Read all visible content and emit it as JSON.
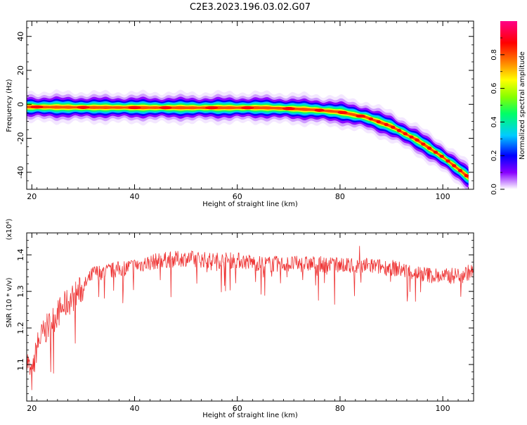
{
  "title": "C2E3.2023.196.03.02.G07",
  "chart_data": [
    {
      "type": "heatmap",
      "xlabel": "Height of straight line (km)",
      "ylabel": "Frequency (Hz)",
      "xlim": [
        19,
        106
      ],
      "ylim": [
        -50,
        49
      ],
      "xticks": [
        20,
        40,
        60,
        80,
        100
      ],
      "yticks": [
        -40,
        -20,
        0,
        20,
        40
      ],
      "colorbar": {
        "label": "Normalized spectral amplitude",
        "range": [
          0,
          1
        ],
        "ticks": [
          "0.0",
          "0.2",
          "0.4",
          "0.6",
          "0.8"
        ],
        "colors": [
          "#ffffff",
          "#8800ff",
          "#0000ff",
          "#00ccff",
          "#00ff66",
          "#88ff00",
          "#ffff00",
          "#ff8800",
          "#ff0000",
          "#ff0088"
        ]
      },
      "ridge": [
        {
          "x": 19,
          "y": -1.5
        },
        {
          "x": 30,
          "y": -1.8
        },
        {
          "x": 50,
          "y": -2.0
        },
        {
          "x": 65,
          "y": -2.0
        },
        {
          "x": 70,
          "y": -2.5
        },
        {
          "x": 75,
          "y": -3.2
        },
        {
          "x": 80,
          "y": -4.5
        },
        {
          "x": 85,
          "y": -7.5
        },
        {
          "x": 90,
          "y": -13
        },
        {
          "x": 95,
          "y": -21
        },
        {
          "x": 100,
          "y": -31
        },
        {
          "x": 103,
          "y": -38
        },
        {
          "x": 105,
          "y": -43
        }
      ]
    },
    {
      "type": "line",
      "xlabel": "Height of straight line (km)",
      "ylabel": "SNR (10 * v/v)",
      "yscale_note": "(x10⁴)",
      "xlim": [
        19,
        106
      ],
      "ylim": [
        1.0,
        1.46
      ],
      "xticks": [
        20,
        40,
        60,
        80,
        100
      ],
      "yticks": [
        "1.1",
        "1.2",
        "1.3",
        "1.4"
      ],
      "color": "#ee3333",
      "trend": [
        {
          "x": 19,
          "y": 1.12
        },
        {
          "x": 20,
          "y": 1.06
        },
        {
          "x": 21,
          "y": 1.15
        },
        {
          "x": 22,
          "y": 1.18
        },
        {
          "x": 23,
          "y": 1.2
        },
        {
          "x": 25,
          "y": 1.24
        },
        {
          "x": 27,
          "y": 1.27
        },
        {
          "x": 30,
          "y": 1.31
        },
        {
          "x": 32,
          "y": 1.35
        },
        {
          "x": 35,
          "y": 1.355
        },
        {
          "x": 40,
          "y": 1.37
        },
        {
          "x": 45,
          "y": 1.385
        },
        {
          "x": 50,
          "y": 1.39
        },
        {
          "x": 55,
          "y": 1.385
        },
        {
          "x": 60,
          "y": 1.385
        },
        {
          "x": 65,
          "y": 1.375
        },
        {
          "x": 70,
          "y": 1.375
        },
        {
          "x": 75,
          "y": 1.375
        },
        {
          "x": 80,
          "y": 1.37
        },
        {
          "x": 85,
          "y": 1.37
        },
        {
          "x": 90,
          "y": 1.365
        },
        {
          "x": 95,
          "y": 1.35
        },
        {
          "x": 100,
          "y": 1.34
        },
        {
          "x": 103,
          "y": 1.345
        },
        {
          "x": 106,
          "y": 1.355
        }
      ]
    }
  ]
}
